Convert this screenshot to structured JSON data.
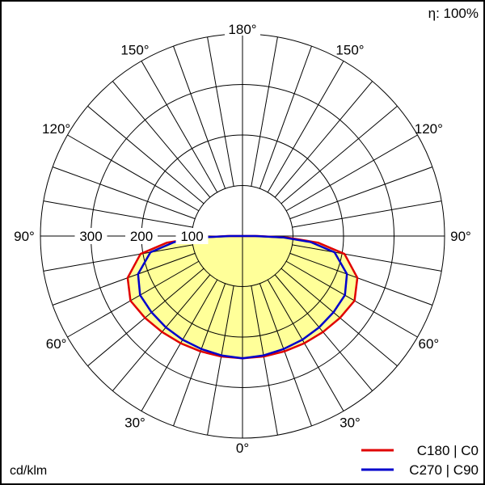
{
  "efficiency": "η: 100%",
  "units": "cd/klm",
  "chart_data": {
    "type": "polar",
    "angle_labels": [
      {
        "deg": 180,
        "text": "180°"
      },
      {
        "deg": 150,
        "text": "150°"
      },
      {
        "deg": 120,
        "text": "120°"
      },
      {
        "deg": 90,
        "text": "90°"
      },
      {
        "deg": 60,
        "text": "60°"
      },
      {
        "deg": 30,
        "text": "30°"
      },
      {
        "deg": 0,
        "text": "0°"
      }
    ],
    "radial_ticks": [
      100,
      200,
      300
    ],
    "radial_max": 400,
    "grid": true,
    "fill_color": "#ffff99",
    "series": [
      {
        "name": "C180 | C0",
        "color": "#e00000",
        "angles": [
          0,
          10,
          20,
          30,
          40,
          50,
          60,
          70,
          80,
          85,
          88,
          90
        ],
        "values": [
          242,
          242,
          243,
          245,
          248,
          252,
          256,
          242,
          205,
          150,
          90,
          30
        ]
      },
      {
        "name": "C270 | C90",
        "color": "#0000cc",
        "angles": [
          0,
          10,
          20,
          30,
          40,
          50,
          60,
          70,
          80,
          85,
          88,
          90
        ],
        "values": [
          242,
          240,
          238,
          237,
          236,
          235,
          234,
          220,
          185,
          135,
          80,
          25
        ]
      }
    ]
  }
}
